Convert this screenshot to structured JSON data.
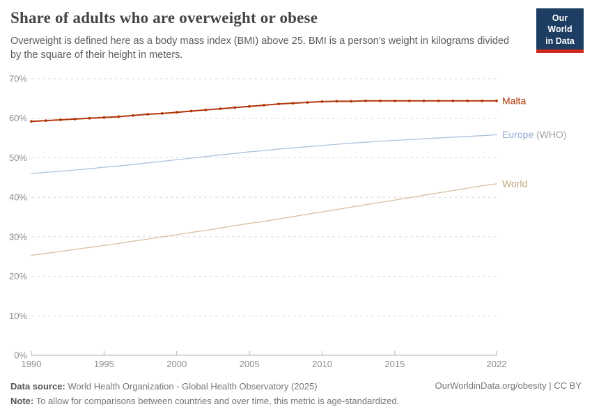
{
  "logo": {
    "line1": "Our World",
    "line2": "in Data",
    "bg_color": "#1d3d63",
    "bar_color": "#cc2a1f"
  },
  "chart_data": {
    "type": "line",
    "title": "Share of adults who are overweight or obese",
    "subtitle": "Overweight is defined here as a body mass index (BMI) above 25. BMI is a person's weight in kilograms divided by the square of their height in meters.",
    "x": [
      1990,
      1991,
      1992,
      1993,
      1994,
      1995,
      1996,
      1997,
      1998,
      1999,
      2000,
      2001,
      2002,
      2003,
      2004,
      2005,
      2006,
      2007,
      2008,
      2009,
      2010,
      2011,
      2012,
      2013,
      2014,
      2015,
      2016,
      2017,
      2018,
      2019,
      2020,
      2021,
      2022
    ],
    "xticks": [
      1990,
      1995,
      2000,
      2005,
      2010,
      2015,
      2022
    ],
    "ylim": [
      0,
      70
    ],
    "yticks": [
      0,
      10,
      20,
      30,
      40,
      50,
      60,
      70
    ],
    "ytick_suffix": "%",
    "grid": "horizontal-dashed",
    "legend_position": "right-of-line-end",
    "axis_color": "#b0b0b0",
    "grid_color": "#dadada",
    "tick_label_color": "#8c8c8c",
    "series": [
      {
        "name": "Malta",
        "color": "#b13507",
        "line_width": 2,
        "markers": true,
        "label_segments": [
          {
            "text": "Malta",
            "color": "#b13507"
          }
        ],
        "values": [
          59.2,
          59.4,
          59.6,
          59.8,
          60.0,
          60.2,
          60.4,
          60.7,
          61.0,
          61.2,
          61.5,
          61.8,
          62.1,
          62.4,
          62.7,
          63.0,
          63.3,
          63.6,
          63.8,
          64.0,
          64.2,
          64.3,
          64.3,
          64.4,
          64.4,
          64.4,
          64.4,
          64.4,
          64.4,
          64.4,
          64.4,
          64.4,
          64.4
        ]
      },
      {
        "name": "Europe (WHO)",
        "color": "#aec2db",
        "line_width": 1.3,
        "markers": false,
        "label_segments": [
          {
            "text": "Europe ",
            "color": "#93add2"
          },
          {
            "text": "(WHO)",
            "color": "#a3a3a3"
          }
        ],
        "values": [
          46.0,
          46.3,
          46.6,
          46.9,
          47.2,
          47.6,
          47.9,
          48.3,
          48.7,
          49.1,
          49.5,
          49.9,
          50.3,
          50.7,
          51.1,
          51.5,
          51.8,
          52.2,
          52.5,
          52.8,
          53.1,
          53.4,
          53.7,
          53.9,
          54.2,
          54.4,
          54.6,
          54.8,
          55.0,
          55.2,
          55.4,
          55.6,
          55.8
        ]
      },
      {
        "name": "World",
        "color": "#d8bf9d",
        "line_width": 1.3,
        "markers": false,
        "label_segments": [
          {
            "text": "World",
            "color": "#c6a47e"
          }
        ],
        "values": [
          25.3,
          25.8,
          26.3,
          26.8,
          27.3,
          27.8,
          28.3,
          28.9,
          29.4,
          30.0,
          30.5,
          31.1,
          31.6,
          32.2,
          32.8,
          33.4,
          33.9,
          34.5,
          35.1,
          35.7,
          36.3,
          36.9,
          37.5,
          38.1,
          38.7,
          39.3,
          39.9,
          40.5,
          41.1,
          41.7,
          42.3,
          42.9,
          43.4
        ]
      }
    ]
  },
  "footer": {
    "datasource_label": "Data source:",
    "datasource_text": "World Health Organization - Global Health Observatory (2025)",
    "note_label": "Note:",
    "note_text": "To allow for comparisons between countries and over time, this metric is age-standardized.",
    "credit": "OurWorldinData.org/obesity | CC BY"
  }
}
